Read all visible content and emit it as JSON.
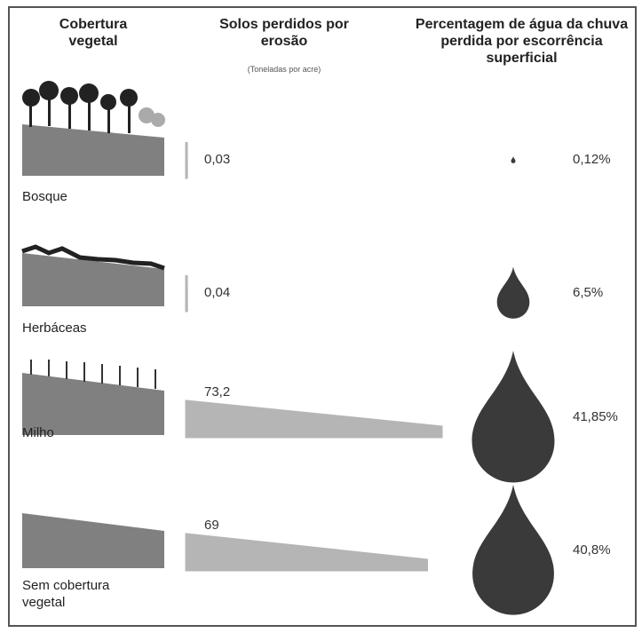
{
  "chart_data": {
    "type": "bar",
    "category_header": "Cobertura vegetal",
    "categories": [
      "Bosque",
      "Herbáceas",
      "Milho",
      "Sem cobertura vegetal"
    ],
    "series": [
      {
        "name": "Solos perdidos por erosão",
        "unit": "(Toneladas por acre)",
        "color": "#b5b5b5",
        "values": [
          0.03,
          0.04,
          73.2,
          69
        ],
        "value_labels": [
          "0,03",
          "0,04",
          "73,2",
          "69"
        ]
      },
      {
        "name": "Percentagem de água da chuva perdida por escorrência superficial",
        "color": "#3a3a3a",
        "values": [
          0.12,
          6.5,
          41.85,
          40.8
        ],
        "value_labels": [
          "0,12%",
          "6,5%",
          "41,85%",
          "40,8%"
        ]
      }
    ]
  }
}
